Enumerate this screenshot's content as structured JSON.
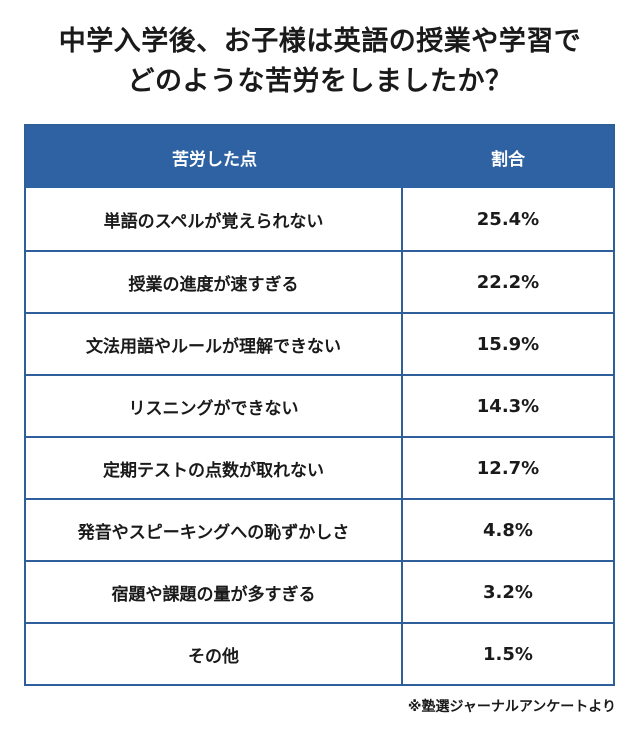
{
  "title": {
    "line1": "中学入学後、お子様は英語の授業や学習で",
    "line2": "どのような苦労をしましたか？"
  },
  "table": {
    "headers": [
      "苦労した点",
      "割合"
    ],
    "rows": [
      {
        "label": "単語のスペルが覚えられない",
        "value": "25.4%"
      },
      {
        "label": "授業の進度が速すぎる",
        "value": "22.2%"
      },
      {
        "label": "文法用語やルールが理解できない",
        "value": "15.9%"
      },
      {
        "label": "リスニングができない",
        "value": "14.3%"
      },
      {
        "label": "定期テストの点数が取れない",
        "value": "12.7%"
      },
      {
        "label": "発音やスピーキングへの恥ずかしさ",
        "value": "4.8%"
      },
      {
        "label": "宿題や課題の量が多すぎる",
        "value": "3.2%"
      },
      {
        "label": "その他",
        "value": "1.5%"
      }
    ]
  },
  "source": "※塾選ジャーナルアンケートより",
  "colors": {
    "header_bg": "#2f62a2",
    "border": "#2e5f9a"
  }
}
